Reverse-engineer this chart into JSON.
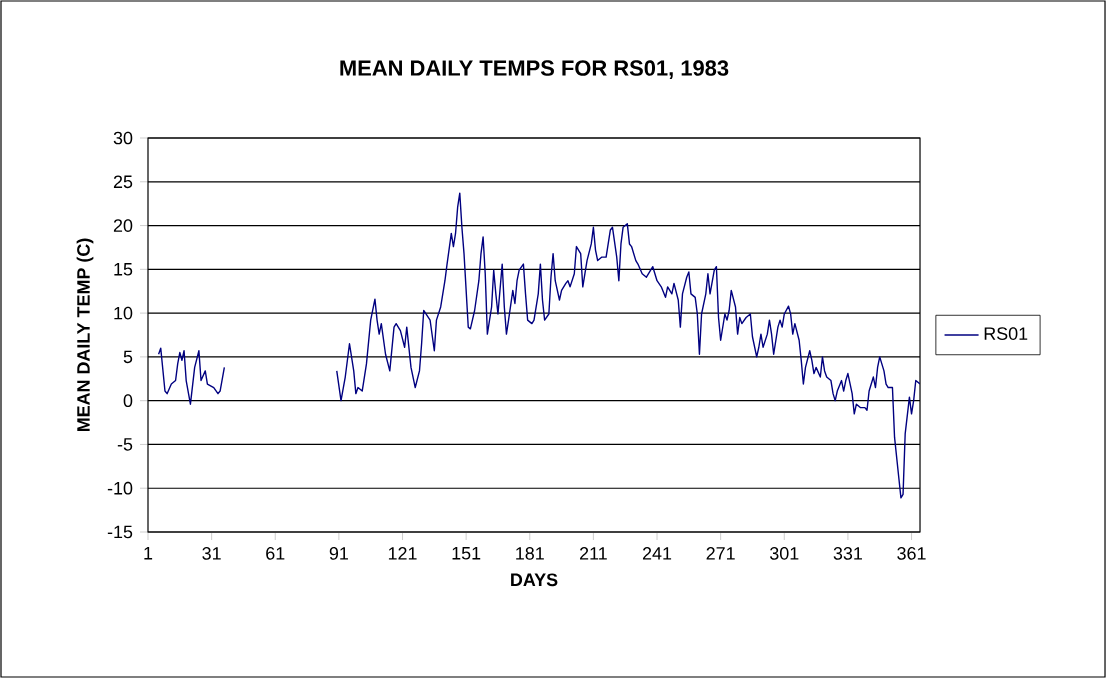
{
  "chart_data": {
    "type": "line",
    "title": "MEAN DAILY TEMPS FOR RS01, 1983",
    "xlabel": "DAYS",
    "ylabel": "MEAN DAILY TEMP (C)",
    "x": [
      6,
      7,
      9,
      10,
      12,
      14,
      15,
      16,
      17,
      18,
      19,
      21,
      23,
      25,
      26,
      28,
      29,
      32,
      34,
      35,
      37,
      60,
      90,
      92,
      94,
      96,
      98,
      99,
      100,
      102,
      104,
      106,
      108,
      109,
      110,
      111,
      113,
      115,
      117,
      118,
      120,
      122,
      123,
      125,
      127,
      129,
      130,
      131,
      134,
      136,
      137,
      139,
      141,
      142,
      144,
      145,
      146,
      147,
      148,
      149,
      150,
      152,
      153,
      155,
      157,
      158,
      159,
      160,
      161,
      163,
      164,
      165,
      166,
      168,
      169,
      170,
      171,
      173,
      174,
      175,
      176,
      178,
      179,
      180,
      182,
      183,
      185,
      186,
      187,
      188,
      190,
      191,
      192,
      193,
      195,
      196,
      198,
      199,
      200,
      202,
      203,
      205,
      206,
      207,
      208,
      210,
      211,
      212,
      213,
      215,
      217,
      219,
      220,
      222,
      223,
      224,
      225,
      227,
      228,
      229,
      231,
      232,
      234,
      236,
      237,
      239,
      241,
      243,
      245,
      246,
      248,
      249,
      251,
      252,
      253,
      255,
      256,
      257,
      259,
      260,
      261,
      262,
      264,
      265,
      266,
      268,
      269,
      270,
      271,
      273,
      274,
      275,
      276,
      278,
      279,
      280,
      281,
      283,
      285,
      286,
      288,
      289,
      290,
      291,
      293,
      294,
      295,
      296,
      298,
      299,
      300,
      301,
      303,
      304,
      305,
      306,
      308,
      309,
      310,
      311,
      313,
      314,
      315,
      316,
      318,
      319,
      320,
      321,
      323,
      324,
      325,
      326,
      328,
      329,
      330,
      331,
      333,
      334,
      335,
      337,
      339,
      340,
      341,
      343,
      344,
      345,
      346,
      348,
      349,
      350,
      352,
      353,
      355,
      356,
      357,
      358,
      360,
      361,
      362,
      363,
      365
    ],
    "series": [
      {
        "name": "RS01",
        "color": "#000080",
        "values": [
          5.3,
          6,
          1.1,
          0.8,
          1.9,
          2.3,
          4.2,
          5.5,
          4.6,
          5.7,
          2.3,
          -0.4,
          3.8,
          5.7,
          2.3,
          3.4,
          1.9,
          1.5,
          0.8,
          1.1,
          3.8,
          null,
          3.4,
          0,
          2.7,
          6.5,
          3.4,
          0.8,
          1.5,
          1.1,
          4.2,
          9.2,
          11.6,
          9.2,
          7.6,
          8.8,
          5.3,
          3.4,
          8.4,
          8.8,
          8.0,
          6.1,
          8.4,
          3.8,
          1.5,
          3.4,
          6.5,
          10.3,
          9.2,
          5.7,
          9.2,
          10.7,
          13.7,
          15.6,
          19.1,
          17.6,
          19.1,
          22.1,
          23.7,
          19.8,
          16.8,
          8.4,
          8.2,
          10.3,
          13.7,
          16.8,
          18.7,
          14.5,
          7.6,
          10.7,
          14.9,
          12.2,
          9.9,
          15.6,
          10.7,
          7.6,
          9.2,
          12.6,
          11.1,
          13.7,
          14.9,
          15.6,
          12.2,
          9.2,
          8.8,
          9.2,
          12.2,
          15.6,
          11.5,
          9.2,
          9.9,
          14.1,
          16.8,
          13.7,
          11.5,
          12.6,
          13.4,
          13.7,
          13.0,
          14.5,
          17.6,
          16.8,
          13.0,
          14.5,
          16.0,
          17.9,
          19.8,
          17.2,
          16.0,
          16.4,
          16.4,
          19.5,
          19.8,
          16.4,
          13.7,
          17.9,
          19.8,
          20.2,
          17.9,
          17.6,
          16.0,
          15.6,
          14.5,
          14.1,
          14.5,
          15.3,
          13.7,
          13.0,
          11.8,
          13.0,
          12.2,
          13.4,
          11.5,
          8.4,
          12.2,
          14.1,
          14.7,
          12.2,
          11.8,
          9.9,
          5.3,
          9.9,
          12.2,
          14.5,
          12.2,
          14.9,
          15.3,
          9.5,
          6.9,
          9.9,
          9.2,
          10.3,
          12.6,
          10.7,
          7.6,
          9.5,
          8.8,
          9.5,
          9.9,
          7.3,
          5.0,
          6.1,
          7.6,
          6.1,
          7.6,
          9.2,
          7.6,
          5.3,
          8.4,
          9.2,
          8.4,
          9.9,
          10.8,
          9.9,
          7.6,
          8.8,
          6.9,
          4.6,
          1.9,
          3.8,
          5.7,
          4.6,
          3.1,
          3.8,
          2.7,
          5.0,
          3.4,
          2.7,
          2.3,
          0.8,
          0.0,
          1.1,
          2.3,
          1.1,
          2.3,
          3.1,
          0.8,
          -1.5,
          -0.4,
          -0.8,
          -0.8,
          -1.1,
          1.1,
          2.7,
          1.5,
          3.8,
          5.0,
          3.4,
          1.9,
          1.5,
          1.5,
          -4.2,
          -8.8,
          -11.1,
          -10.7,
          -3.8,
          0.4,
          -1.5,
          0.0,
          2.3,
          1.9
        ]
      }
    ],
    "xlim": [
      1,
      365
    ],
    "ylim": [
      -15,
      30
    ],
    "xticks": [
      1,
      31,
      61,
      91,
      121,
      151,
      181,
      211,
      241,
      271,
      301,
      331,
      361
    ],
    "yticks": [
      -15,
      -10,
      -5,
      0,
      5,
      10,
      15,
      20,
      25,
      30
    ],
    "grid": "y",
    "legend": "right",
    "marker": "none",
    "line_style": "solid"
  }
}
